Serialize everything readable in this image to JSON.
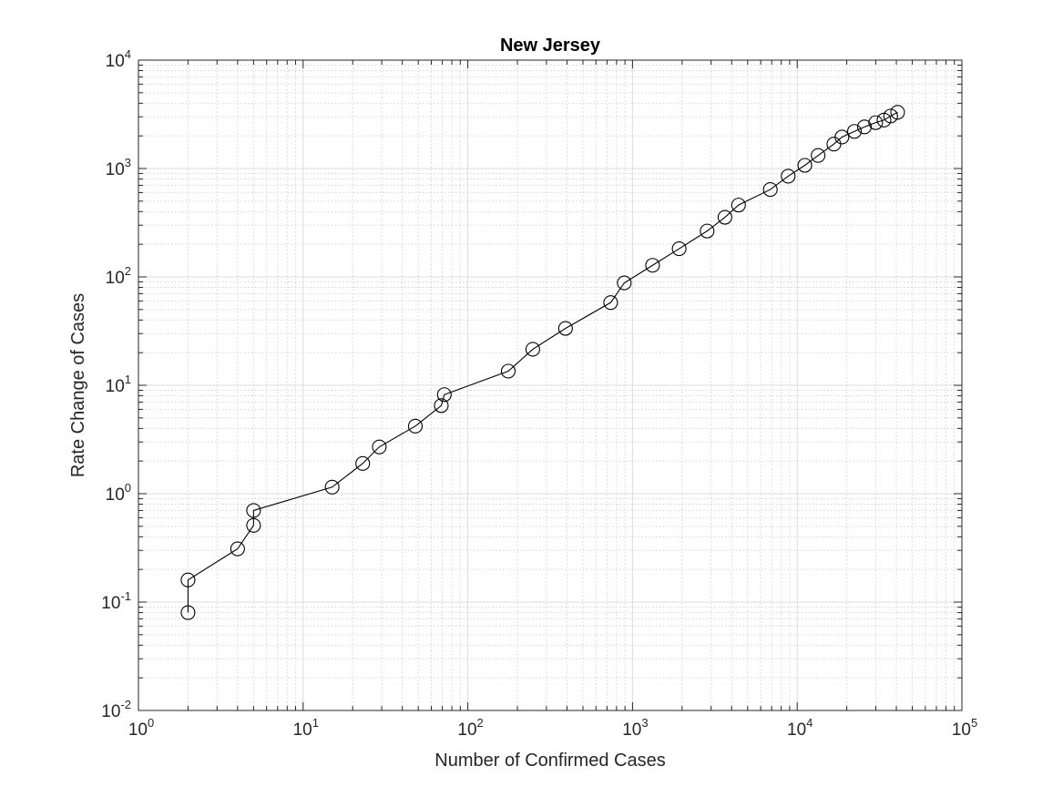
{
  "chart_data": {
    "type": "line",
    "title": "New Jersey",
    "xlabel": "Number of Confirmed Cases",
    "ylabel": "Rate Change of Cases",
    "xscale": "log",
    "yscale": "log",
    "xlim": [
      1,
      100000
    ],
    "ylim": [
      0.01,
      10000
    ],
    "grid": "on (major and minor)",
    "legend": "none",
    "marker": "circle",
    "line_color": "#000000",
    "x_ticks": [
      {
        "base": "10",
        "exp": "0"
      },
      {
        "base": "10",
        "exp": "1"
      },
      {
        "base": "10",
        "exp": "2"
      },
      {
        "base": "10",
        "exp": "3"
      },
      {
        "base": "10",
        "exp": "4"
      },
      {
        "base": "10",
        "exp": "5"
      }
    ],
    "y_ticks": [
      {
        "base": "10",
        "exp": "-2"
      },
      {
        "base": "10",
        "exp": "-1"
      },
      {
        "base": "10",
        "exp": "0"
      },
      {
        "base": "10",
        "exp": "1"
      },
      {
        "base": "10",
        "exp": "2"
      },
      {
        "base": "10",
        "exp": "3"
      },
      {
        "base": "10",
        "exp": "4"
      }
    ],
    "series": [
      {
        "x": [
          2,
          2,
          4,
          5,
          5,
          15,
          23,
          29,
          48,
          69,
          72,
          176,
          248,
          392,
          737,
          891,
          1324,
          1920,
          2838,
          3642,
          4403,
          6865,
          8815,
          11124,
          13398,
          16698,
          18696,
          22255,
          25598,
          29959,
          33659,
          36950,
          40711
        ],
        "y": [
          0.08,
          0.16,
          0.31,
          0.51,
          0.7,
          1.15,
          1.9,
          2.7,
          4.2,
          6.5,
          8.2,
          13.5,
          21.5,
          33.5,
          58,
          88,
          128,
          182,
          265,
          355,
          460,
          640,
          850,
          1070,
          1320,
          1680,
          1950,
          2200,
          2420,
          2650,
          2800,
          3050,
          3300
        ]
      }
    ]
  }
}
